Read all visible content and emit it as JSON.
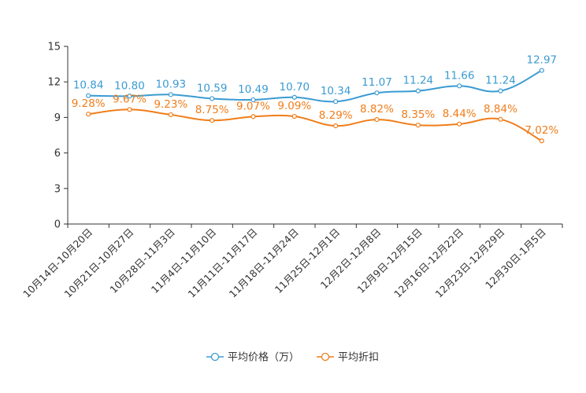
{
  "chart_data": {
    "type": "line",
    "title": "",
    "xlabel": "",
    "ylabel": "",
    "ylim": [
      0,
      15
    ],
    "yticks": [
      0,
      3,
      6,
      9,
      12,
      15
    ],
    "grid": false,
    "legend_position": "bottom-center",
    "categories": [
      "10月14日-10月20日",
      "10月21日-10月27日",
      "10月28日-11月3日",
      "11月4日-11月10日",
      "11月11日-11月17日",
      "11月18日-11月24日",
      "11月25日-12月1日",
      "12月2日-12月8日",
      "12月9日-12月15日",
      "12月16日-12月22日",
      "12月23日-12月29日",
      "12月30日-1月5日"
    ],
    "series": [
      {
        "name": "平均价格（万）",
        "color": "#3a9bd2",
        "values": [
          10.84,
          10.8,
          10.93,
          10.59,
          10.49,
          10.7,
          10.34,
          11.07,
          11.24,
          11.66,
          11.24,
          12.97
        ],
        "labels": [
          "10.84",
          "10.80",
          "10.93",
          "10.59",
          "10.49",
          "10.70",
          "10.34",
          "11.07",
          "11.24",
          "11.66",
          "11.24",
          "12.97"
        ]
      },
      {
        "name": "平均折扣",
        "color": "#f07d1a",
        "values": [
          9.28,
          9.67,
          9.23,
          8.75,
          9.07,
          9.09,
          8.29,
          8.82,
          8.35,
          8.44,
          8.84,
          7.02
        ],
        "labels": [
          "9.28%",
          "9.67%",
          "9.23%",
          "8.75%",
          "9.07%",
          "9.09%",
          "8.29%",
          "8.82%",
          "8.35%",
          "8.44%",
          "8.84%",
          "7.02%"
        ]
      }
    ]
  }
}
